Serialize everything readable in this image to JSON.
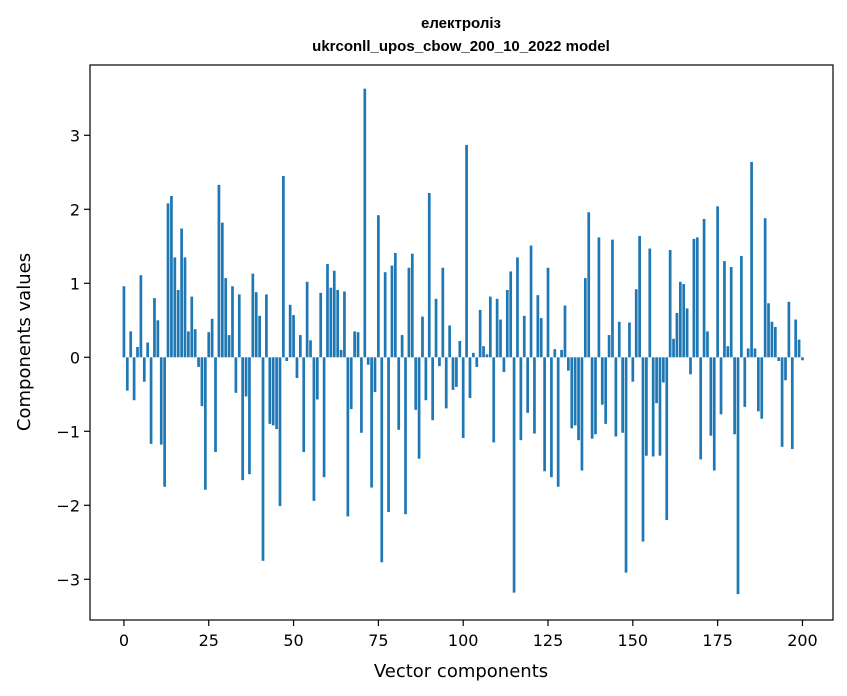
{
  "chart_data": {
    "type": "bar",
    "title": "електроліз",
    "subtitle": "ukrconll_upos_cbow_200_10_2022 model",
    "xlabel": "Vector components",
    "ylabel": "Components values",
    "xlim": [
      -10,
      209
    ],
    "ylim": [
      -3.55,
      3.95
    ],
    "xticks": [
      0,
      25,
      50,
      75,
      100,
      125,
      150,
      175,
      200
    ],
    "yticks": [
      -3,
      -2,
      -1,
      0,
      1,
      2,
      3
    ],
    "ytick_labels": [
      "−3",
      "−2",
      "−1",
      "0",
      "1",
      "2",
      "3"
    ],
    "bar_color": "#1f77b4",
    "grid": false,
    "values": [
      0.96,
      -0.45,
      0.35,
      -0.58,
      0.14,
      1.11,
      -0.33,
      0.2,
      -1.17,
      0.8,
      0.5,
      -1.18,
      -1.75,
      2.08,
      2.18,
      1.35,
      0.91,
      1.74,
      1.35,
      0.35,
      0.82,
      0.38,
      -0.13,
      -0.66,
      -1.79,
      0.34,
      0.52,
      -1.28,
      2.33,
      1.82,
      1.07,
      0.3,
      0.96,
      -0.48,
      0.85,
      -1.66,
      -0.53,
      -1.58,
      1.13,
      0.88,
      0.56,
      -2.75,
      0.85,
      -0.9,
      -0.92,
      -0.97,
      -2.01,
      2.45,
      -0.05,
      0.71,
      0.57,
      -0.28,
      0.3,
      -1.28,
      1.02,
      0.23,
      -1.94,
      -0.57,
      0.87,
      -1.62,
      1.26,
      0.94,
      1.17,
      0.91,
      0.1,
      0.89,
      -2.15,
      -0.7,
      0.35,
      0.34,
      -1.02,
      3.63,
      -0.1,
      -1.76,
      -0.47,
      1.92,
      -2.77,
      1.15,
      -2.09,
      1.24,
      1.41,
      -0.98,
      0.3,
      -2.12,
      1.21,
      1.4,
      -0.71,
      -1.37,
      0.55,
      -0.58,
      2.22,
      -0.85,
      0.79,
      -0.12,
      1.21,
      -0.69,
      0.43,
      -0.44,
      -0.4,
      0.22,
      -1.09,
      2.87,
      -0.55,
      0.06,
      -0.13,
      0.64,
      0.15,
      0.04,
      0.82,
      -1.15,
      0.79,
      0.51,
      -0.2,
      0.91,
      1.16,
      -3.18,
      1.35,
      -1.12,
      0.56,
      -0.75,
      1.51,
      -1.03,
      0.84,
      0.53,
      -1.54,
      1.21,
      -1.62,
      0.11,
      -1.75,
      0.1,
      0.7,
      -0.18,
      -0.96,
      -0.92,
      -1.12,
      -1.53,
      1.07,
      1.96,
      -1.1,
      -1.04,
      1.62,
      -0.64,
      -0.9,
      0.3,
      1.59,
      -1.07,
      0.48,
      -1.02,
      -2.91,
      0.47,
      -0.33,
      0.92,
      1.64,
      -2.49,
      -1.33,
      1.47,
      -1.34,
      -0.62,
      -1.33,
      -0.34,
      -2.2,
      1.45,
      0.25,
      0.6,
      1.02,
      0.99,
      0.66,
      -0.23,
      1.6,
      1.62,
      -1.38,
      1.87,
      0.35,
      -1.06,
      -1.53,
      2.04,
      -0.77,
      1.3,
      0.15,
      1.22,
      -1.04,
      -3.2,
      1.37,
      -0.67,
      0.12,
      2.64,
      0.12,
      -0.73,
      -0.83,
      1.88,
      0.73,
      0.48,
      0.41,
      -0.05,
      -1.21,
      -0.31,
      0.75,
      -1.24,
      0.51,
      0.24,
      -0.04
    ]
  }
}
